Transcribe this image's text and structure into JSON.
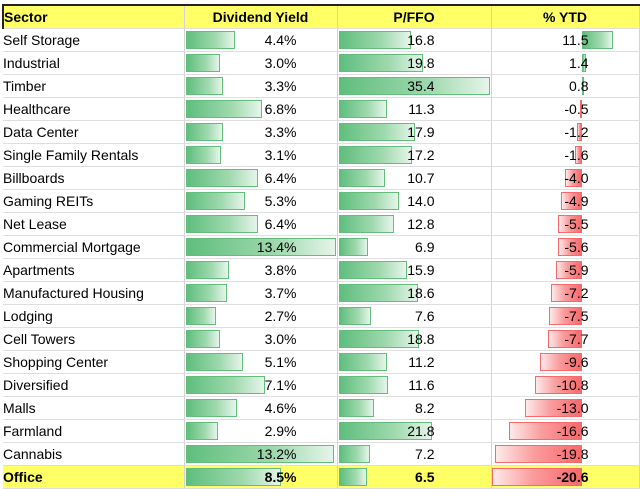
{
  "chart_data": {
    "type": "table",
    "columns": [
      "Sector",
      "Dividend Yield",
      "P/FFO",
      "% YTD"
    ],
    "rows": [
      {
        "sector": "Self Storage",
        "dividend_yield": "4.4%",
        "pffo": "16.8",
        "ytd": "11.5",
        "dy": 4.4,
        "pf": 16.8,
        "y": 11.5
      },
      {
        "sector": "Industrial",
        "dividend_yield": "3.0%",
        "pffo": "19.8",
        "ytd": "1.4",
        "dy": 3.0,
        "pf": 19.8,
        "y": 1.4
      },
      {
        "sector": "Timber",
        "dividend_yield": "3.3%",
        "pffo": "35.4",
        "ytd": "0.8",
        "dy": 3.3,
        "pf": 35.4,
        "y": 0.8
      },
      {
        "sector": "Healthcare",
        "dividend_yield": "6.8%",
        "pffo": "11.3",
        "ytd": "-0.5",
        "dy": 6.8,
        "pf": 11.3,
        "y": -0.5
      },
      {
        "sector": "Data Center",
        "dividend_yield": "3.3%",
        "pffo": "17.9",
        "ytd": "-1.2",
        "dy": 3.3,
        "pf": 17.9,
        "y": -1.2
      },
      {
        "sector": "Single Family Rentals",
        "dividend_yield": "3.1%",
        "pffo": "17.2",
        "ytd": "-1.6",
        "dy": 3.1,
        "pf": 17.2,
        "y": -1.6
      },
      {
        "sector": "Billboards",
        "dividend_yield": "6.4%",
        "pffo": "10.7",
        "ytd": "-4.0",
        "dy": 6.4,
        "pf": 10.7,
        "y": -4.0
      },
      {
        "sector": "Gaming REITs",
        "dividend_yield": "5.3%",
        "pffo": "14.0",
        "ytd": "-4.9",
        "dy": 5.3,
        "pf": 14.0,
        "y": -4.9
      },
      {
        "sector": "Net Lease",
        "dividend_yield": "6.4%",
        "pffo": "12.8",
        "ytd": "-5.5",
        "dy": 6.4,
        "pf": 12.8,
        "y": -5.5
      },
      {
        "sector": "Commercial Mortgage",
        "dividend_yield": "13.4%",
        "pffo": "6.9",
        "ytd": "-5.6",
        "dy": 13.4,
        "pf": 6.9,
        "y": -5.6
      },
      {
        "sector": "Apartments",
        "dividend_yield": "3.8%",
        "pffo": "15.9",
        "ytd": "-5.9",
        "dy": 3.8,
        "pf": 15.9,
        "y": -5.9
      },
      {
        "sector": "Manufactured Housing",
        "dividend_yield": "3.7%",
        "pffo": "18.6",
        "ytd": "-7.2",
        "dy": 3.7,
        "pf": 18.6,
        "y": -7.2
      },
      {
        "sector": "Lodging",
        "dividend_yield": "2.7%",
        "pffo": "7.6",
        "ytd": "-7.5",
        "dy": 2.7,
        "pf": 7.6,
        "y": -7.5
      },
      {
        "sector": "Cell Towers",
        "dividend_yield": "3.0%",
        "pffo": "18.8",
        "ytd": "-7.7",
        "dy": 3.0,
        "pf": 18.8,
        "y": -7.7
      },
      {
        "sector": "Shopping Center",
        "dividend_yield": "5.1%",
        "pffo": "11.2",
        "ytd": "-9.6",
        "dy": 5.1,
        "pf": 11.2,
        "y": -9.6
      },
      {
        "sector": "Diversified",
        "dividend_yield": "7.1%",
        "pffo": "11.6",
        "ytd": "-10.8",
        "dy": 7.1,
        "pf": 11.6,
        "y": -10.8
      },
      {
        "sector": "Malls",
        "dividend_yield": "4.6%",
        "pffo": "8.2",
        "ytd": "-13.0",
        "dy": 4.6,
        "pf": 8.2,
        "y": -13.0
      },
      {
        "sector": "Farmland",
        "dividend_yield": "2.9%",
        "pffo": "21.8",
        "ytd": "-16.6",
        "dy": 2.9,
        "pf": 21.8,
        "y": -16.6
      },
      {
        "sector": "Cannabis",
        "dividend_yield": "13.2%",
        "pffo": "7.2",
        "ytd": "-19.8",
        "dy": 13.2,
        "pf": 7.2,
        "y": -19.8
      },
      {
        "sector": "Office",
        "dividend_yield": "8.5%",
        "pffo": "6.5",
        "ytd": "-20.6",
        "dy": 8.5,
        "pf": 6.5,
        "y": -20.6,
        "highlight": true
      }
    ],
    "scales": {
      "dividend_yield_max": 13.4,
      "pffo_max": 35.4,
      "ytd_max_abs": 20.6
    },
    "colors": {
      "positive": "#63be7b",
      "negative": "#f8696b",
      "header_fill": "#ffff66"
    }
  }
}
